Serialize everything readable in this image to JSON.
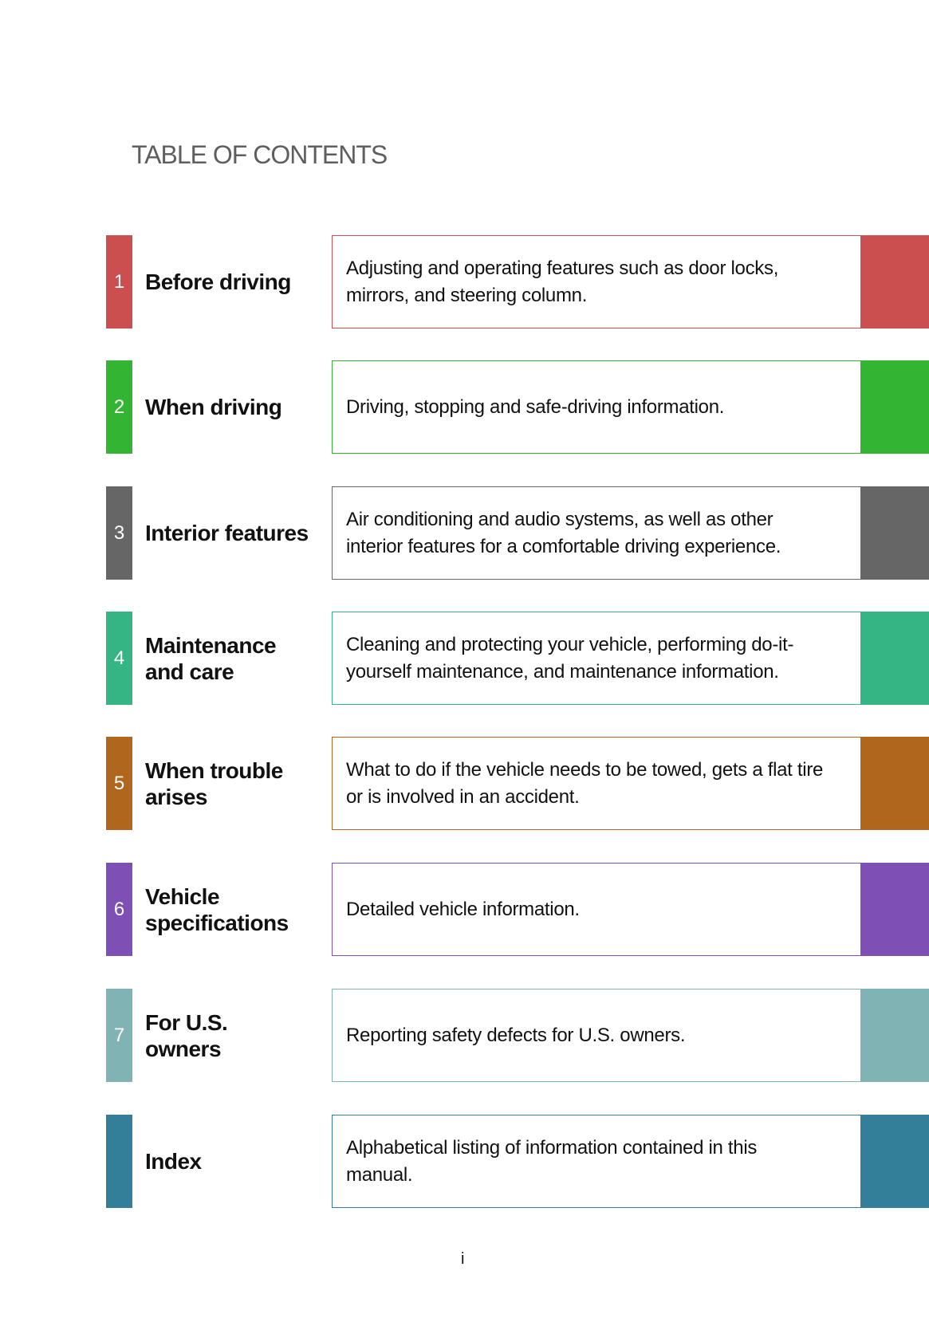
{
  "title": "TABLE OF CONTENTS",
  "sections": [
    {
      "number": "1",
      "label_lines": [
        "Before driving"
      ],
      "desc_lines": [
        "Adjusting and operating features such as door locks,",
        "mirrors, and steering column."
      ],
      "color": "#cc4f4f"
    },
    {
      "number": "2",
      "label_lines": [
        "When driving"
      ],
      "desc_lines": [
        "Driving, stopping and safe-driving information."
      ],
      "color": "#33b533"
    },
    {
      "number": "3",
      "label_lines": [
        "Interior features"
      ],
      "desc_lines": [
        "Air conditioning and audio systems, as well as other",
        "interior features for a comfortable driving experience."
      ],
      "color": "#666666"
    },
    {
      "number": "4",
      "label_lines": [
        "Maintenance",
        "and care"
      ],
      "desc_lines": [
        "Cleaning and protecting your vehicle, performing do-it-",
        "yourself maintenance, and maintenance information."
      ],
      "color": "#36b584"
    },
    {
      "number": "5",
      "label_lines": [
        "When trouble",
        "arises"
      ],
      "desc_lines": [
        "What to do if the vehicle needs to be towed, gets a flat tire",
        "or is involved in an accident."
      ],
      "color": "#b0661c"
    },
    {
      "number": "6",
      "label_lines": [
        "Vehicle",
        "specifications"
      ],
      "desc_lines": [
        "Detailed vehicle information."
      ],
      "color": "#7e4fb4"
    },
    {
      "number": "7",
      "label_lines": [
        "For U.S.",
        "owners"
      ],
      "desc_lines": [
        "Reporting safety defects for U.S. owners."
      ],
      "color": "#80b3b3"
    },
    {
      "number": "",
      "label_lines": [
        "Index"
      ],
      "desc_lines": [
        "Alphabetical listing of information contained in this",
        "manual."
      ],
      "color": "#337f99"
    }
  ],
  "page_number": "i"
}
